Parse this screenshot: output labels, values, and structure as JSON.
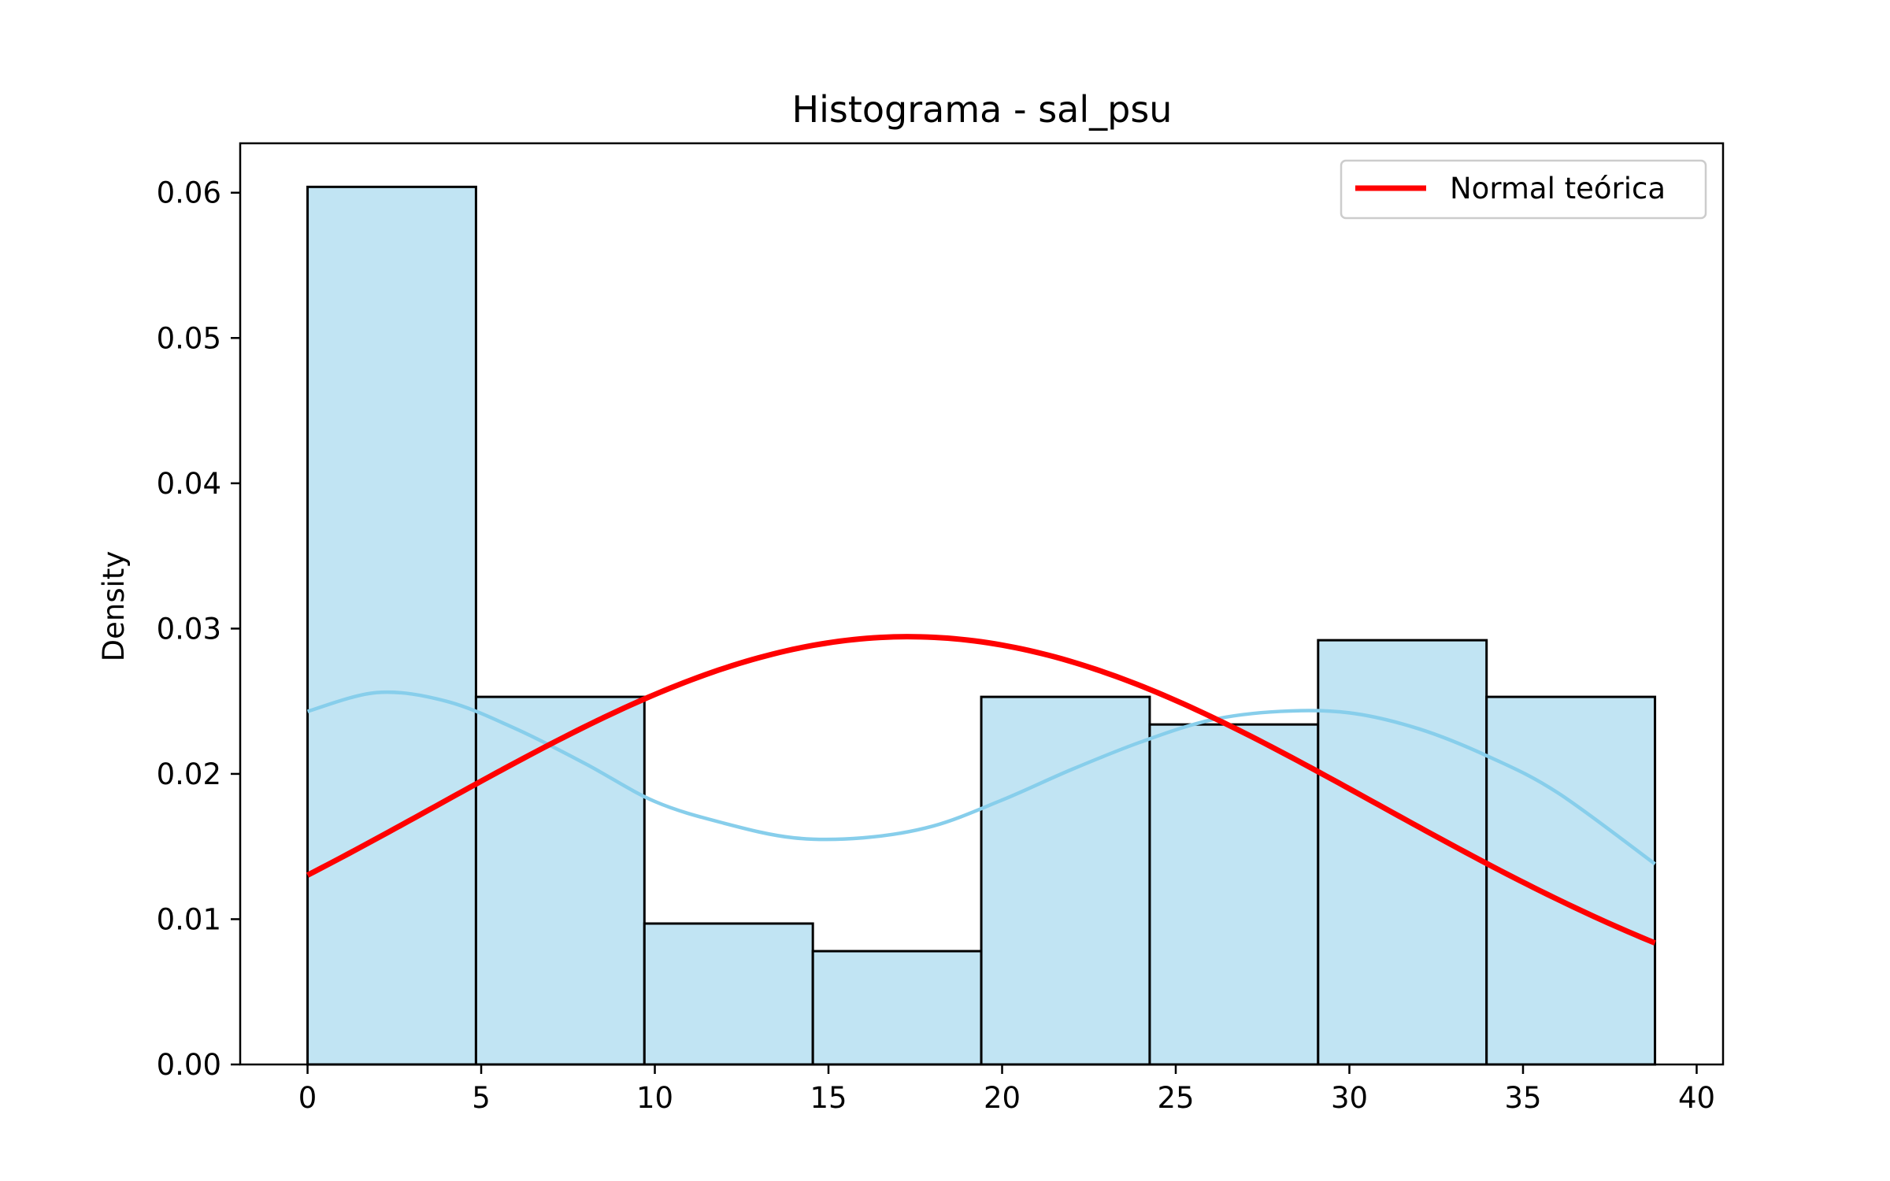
{
  "chart_data": {
    "type": "bar",
    "title": "Histograma - sal_psu",
    "xlabel": "",
    "ylabel": "Density",
    "xlim": [
      -1.94,
      40.76
    ],
    "ylim": [
      0,
      0.0634
    ],
    "xticks": [
      0,
      5,
      10,
      15,
      20,
      25,
      30,
      35,
      40
    ],
    "yticks": [
      0.0,
      0.01,
      0.02,
      0.03,
      0.04,
      0.05,
      0.06
    ],
    "ytick_labels": [
      "0.00",
      "0.01",
      "0.02",
      "0.03",
      "0.04",
      "0.05",
      "0.06"
    ],
    "grid": false,
    "legend_position": "top-right",
    "bins": {
      "edges": [
        0,
        4.85,
        9.7,
        14.55,
        19.4,
        24.25,
        29.1,
        33.95,
        38.8
      ],
      "density": [
        0.0604,
        0.0253,
        0.0097,
        0.0078,
        0.0253,
        0.0234,
        0.0292,
        0.0253
      ],
      "fill": "#c1e4f3",
      "edge_color": "#000000"
    },
    "kde": {
      "color": "#87ceeb",
      "x": [
        0,
        2,
        4,
        6,
        8,
        10,
        12,
        14,
        16,
        18,
        20,
        22,
        24,
        26,
        28,
        30,
        32,
        34,
        36,
        38.8
      ],
      "y": [
        0.0243,
        0.0256,
        0.025,
        0.0231,
        0.0207,
        0.0181,
        0.0166,
        0.0156,
        0.0156,
        0.0164,
        0.0182,
        0.0203,
        0.0222,
        0.0237,
        0.0243,
        0.0242,
        0.0231,
        0.0212,
        0.0187,
        0.0138
      ]
    },
    "series": [
      {
        "name": "Normal teórica",
        "color": "#ff0000",
        "mean": 17.3,
        "std": 13.55,
        "x_range": [
          0,
          38.8
        ]
      }
    ]
  }
}
